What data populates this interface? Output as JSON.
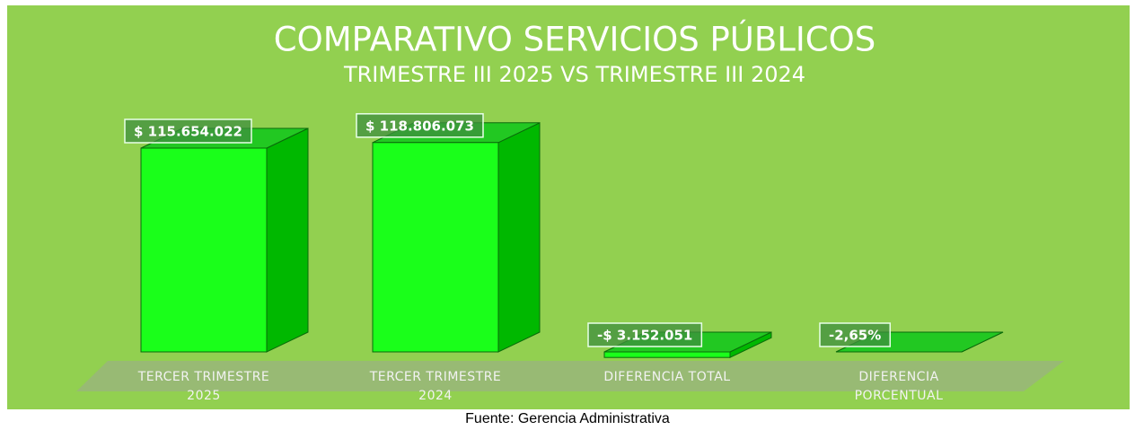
{
  "chart_data": {
    "type": "bar3d",
    "title": "COMPARATIVO SERVICIOS PÚBLICOS",
    "subtitle": "TRIMESTRE III 2025 VS TRIMESTRE III 2024",
    "categories": [
      "TERCER TRIMESTRE 2025",
      "TERCER TRIMESTRE 2024",
      "DIFERENCIA TOTAL",
      "DIFERENCIA PORCENTUAL"
    ],
    "values": [
      115654022,
      118806073,
      -3152051,
      -2.65
    ],
    "value_labels": [
      "$ 115.654.022",
      "$ 118.806.073",
      "-$ 3.152.051",
      "-2,65%"
    ],
    "ylim": [
      0,
      140000000
    ],
    "color": "#1aff1a",
    "background": "#92d050",
    "source": "Fuente: Gerencia Administrativa"
  }
}
